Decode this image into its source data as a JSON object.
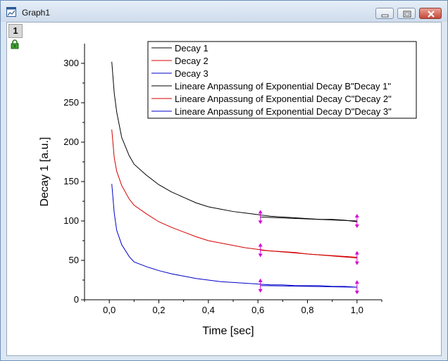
{
  "window": {
    "title": "Graph1",
    "layer_label": "1"
  },
  "icons": {
    "app": "graph-window-icon",
    "lock": "lock-icon",
    "minimize": "minimize-icon",
    "maximize": "maximize-icon",
    "close": "close-icon"
  },
  "colors": {
    "decay1": "#000000",
    "decay2": "#d40000",
    "decay3": "#0000c8",
    "marker": "#d400d4"
  },
  "chart_data": {
    "type": "line",
    "title": "",
    "xlabel": "Time [sec]",
    "ylabel": "Decay 1 [a.u.]",
    "xlim": [
      -0.1,
      1.1
    ],
    "ylim": [
      0,
      325
    ],
    "x_ticks": [
      0.0,
      0.2,
      0.4,
      0.6,
      0.8,
      1.0
    ],
    "x_tick_labels": [
      "0,0",
      "0,2",
      "0,4",
      "0,6",
      "0,8",
      "1,0"
    ],
    "y_ticks": [
      0,
      50,
      100,
      150,
      200,
      250,
      300
    ],
    "y_tick_labels": [
      "0",
      "50",
      "100",
      "150",
      "200",
      "250",
      "300"
    ],
    "grid": false,
    "legend_position": "top-right",
    "x": [
      0.01,
      0.02,
      0.03,
      0.05,
      0.08,
      0.1,
      0.15,
      0.2,
      0.25,
      0.3,
      0.35,
      0.4,
      0.45,
      0.5,
      0.55,
      0.6,
      0.65,
      0.7,
      0.75,
      0.8,
      0.85,
      0.9,
      0.95,
      1.0
    ],
    "series": [
      {
        "name": "Decay 1",
        "color": "#000000",
        "values": [
          302,
          262,
          238,
          206,
          183,
          172,
          158,
          146,
          137,
          130,
          123,
          118,
          115,
          112,
          110,
          108,
          106,
          105,
          104,
          103,
          102,
          102,
          101,
          99
        ]
      },
      {
        "name": "Decay 2",
        "color": "#d40000",
        "values": [
          216,
          180,
          163,
          145,
          128,
          120,
          109,
          99,
          92,
          86,
          80,
          75,
          72,
          69,
          66,
          64,
          62,
          61,
          60,
          58,
          57,
          56,
          55,
          54
        ]
      },
      {
        "name": "Decay 3",
        "color": "#0000c8",
        "values": [
          147,
          110,
          88,
          70,
          55,
          48,
          42,
          37,
          33,
          30,
          27,
          25,
          23,
          22,
          21,
          20,
          19,
          19,
          18,
          18,
          18,
          17,
          17,
          16
        ]
      }
    ],
    "fits": [
      {
        "name": "Lineare Anpassung of Exponential Decay B\"Decay 1\"",
        "color": "#000000",
        "x": [
          0.61,
          1.0
        ],
        "values": [
          105,
          100
        ]
      },
      {
        "name": "Lineare Anpassung of Exponential Decay C\"Decay 2\"",
        "color": "#d40000",
        "x": [
          0.61,
          1.0
        ],
        "values": [
          63,
          53
        ]
      },
      {
        "name": "Lineare Anpassung of Exponential Decay D\"Decay 3\"",
        "color": "#0000c8",
        "x": [
          0.61,
          1.0
        ],
        "values": [
          18,
          16
        ]
      }
    ],
    "range_markers": {
      "x": [
        0.61,
        1.0
      ],
      "color": "#d400d4"
    }
  }
}
